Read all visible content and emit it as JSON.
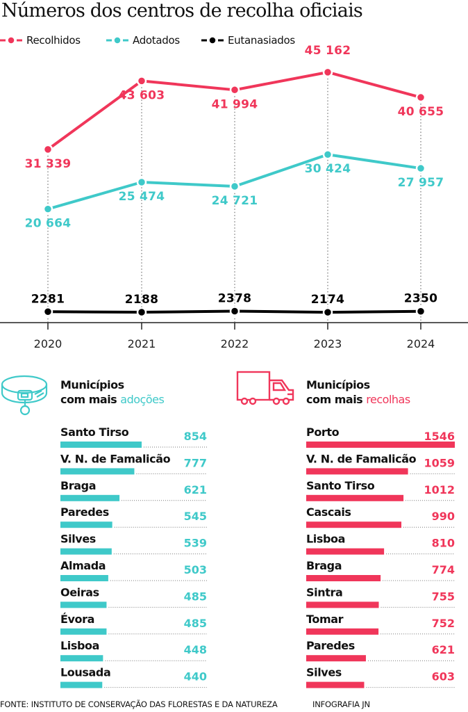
{
  "title": "Números dos centros de recolha oficiais",
  "colors": {
    "recolhidos": "#f0365a",
    "adotados": "#3fc9c9",
    "eutanasiados": "#000000"
  },
  "chart_data": [
    {
      "type": "line",
      "x": [
        "2020",
        "2021",
        "2022",
        "2023",
        "2024"
      ],
      "series": [
        {
          "name": "Recolhidos",
          "values": [
            31339,
            43603,
            41994,
            45162,
            40655
          ],
          "labels": [
            "31 339",
            "43 603",
            "41 994",
            "45 162",
            "40 655"
          ]
        },
        {
          "name": "Adotados",
          "values": [
            20664,
            25474,
            24721,
            30424,
            27957
          ],
          "labels": [
            "20 664",
            "25 474",
            "24 721",
            "30 424",
            "27 957"
          ]
        },
        {
          "name": "Eutanasiados",
          "values": [
            2281,
            2188,
            2378,
            2174,
            2350
          ],
          "labels": [
            "2281",
            "2188",
            "2378",
            "2174",
            "2350"
          ]
        }
      ],
      "legend": "top-left",
      "grid": false,
      "ylim": [
        0,
        50000
      ]
    },
    {
      "type": "bar",
      "orientation": "horizontal",
      "title_line1": "Municípios",
      "title_line2": "com mais",
      "title_accent": "adoções",
      "icon": "dog-collar-icon",
      "categories": [
        "Santo Tirso",
        "V. N. de Famalicão",
        "Braga",
        "Paredes",
        "Silves",
        "Almada",
        "Oeiras",
        "Évora",
        "Lisboa",
        "Lousada"
      ],
      "values": [
        854,
        777,
        621,
        545,
        539,
        503,
        485,
        485,
        448,
        440
      ]
    },
    {
      "type": "bar",
      "orientation": "horizontal",
      "title_line1": "Municípios",
      "title_line2": "com mais",
      "title_accent": "recolhas",
      "icon": "truck-icon",
      "categories": [
        "Porto",
        "V. N. de Famalicão",
        "Santo Tirso",
        "Cascais",
        "Lisboa",
        "Braga",
        "Sintra",
        "Tomar",
        "Paredes",
        "Silves"
      ],
      "values": [
        1546,
        1059,
        1012,
        990,
        810,
        774,
        755,
        752,
        621,
        603
      ]
    }
  ],
  "footer": {
    "source": "FONTE:  INSTITUTO DE CONSERVAÇÃO DAS FLORESTAS E DA NATUREZA",
    "credit": "INFOGRAFIA JN"
  }
}
